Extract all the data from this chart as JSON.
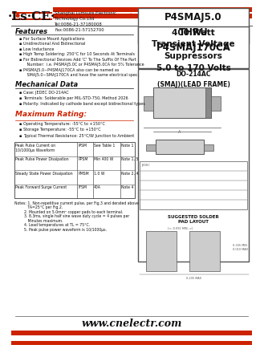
{
  "title_part": "P4SMAJ5.0\nTHRU\nP4SMAJ170CA",
  "title_desc": "400 Watt\nTransient Voltage\nSuppressors\n5.0 to 170 Volts",
  "package_title": "DO-214AC\n(SMAJ)(LEAD FRAME)",
  "company_name": "Shanghai Lumsure Electronic\nTechnology Co.,Ltd\nTel:0086-21-37180008\nFax:0086-21-57152700",
  "website": "www.cnelectr.com",
  "features_title": "Features",
  "features": [
    "For Surface Mount Applications",
    "Unidirectional And Bidirectional",
    "Low Inductance",
    "High Temp Soldering: 250°C for 10 Seconds At Terminals",
    "For Bidirectional Devices Add 'C' To The Suffix Of The Part\n   Number:  i.e. P4SMAJ5.0C or P4SMAJ5.0CA for 5% Tolerance",
    "P4SMAJ5.0~P4SMAJ170CA also can be named as\n   SMAJ5.0~SMAJ170CA and have the same electrical spec."
  ],
  "mech_title": "Mechanical Data",
  "mech": [
    "Case: JEDEC DO-214AC",
    "Terminals: Solderable per MIL-STD-750, Method 2026",
    "Polarity: Indicated by cathode band except bidirectional types"
  ],
  "maxrating_title": "Maximum Rating:",
  "maxrating": [
    "Operating Temperature: -55°C to +150°C",
    "Storage Temperature: -55°C to +150°C",
    "Typical Thermal Resistance: 25°C/W Junction to Ambient"
  ],
  "table_rows": [
    [
      "Peak Pulse Current on\n10/1000μs Waveform",
      "IPSM",
      "See Table 1",
      "Note 1"
    ],
    [
      "Peak Pulse Power Dissipation",
      "PPSM",
      "Min 400 W",
      "Note 1, 5"
    ],
    [
      "Steady State Power Dissipation",
      "PMSM",
      "1.0 W",
      "Note 2, 4"
    ],
    [
      "Peak Forward Surge Current",
      "IFSM",
      "40A",
      "Note 4"
    ]
  ],
  "notes": [
    "Notes: 1. Non-repetitive current pulse, per Fig.3 and derated above",
    "           TA=25°C per Fig.2.",
    "        2. Mounted on 5.0mm² copper pads to each terminal.",
    "        3. 8.3ms, single half sine wave duty cycle = 4 pulses per",
    "           Minutes maximum.",
    "        4. Lead temperatures at TL = 75°C.",
    "        5. Peak pulse power waveform is 10/1000μs."
  ],
  "red_color": "#cc2200",
  "bg_color": "#ffffff",
  "border_color": "#555555"
}
